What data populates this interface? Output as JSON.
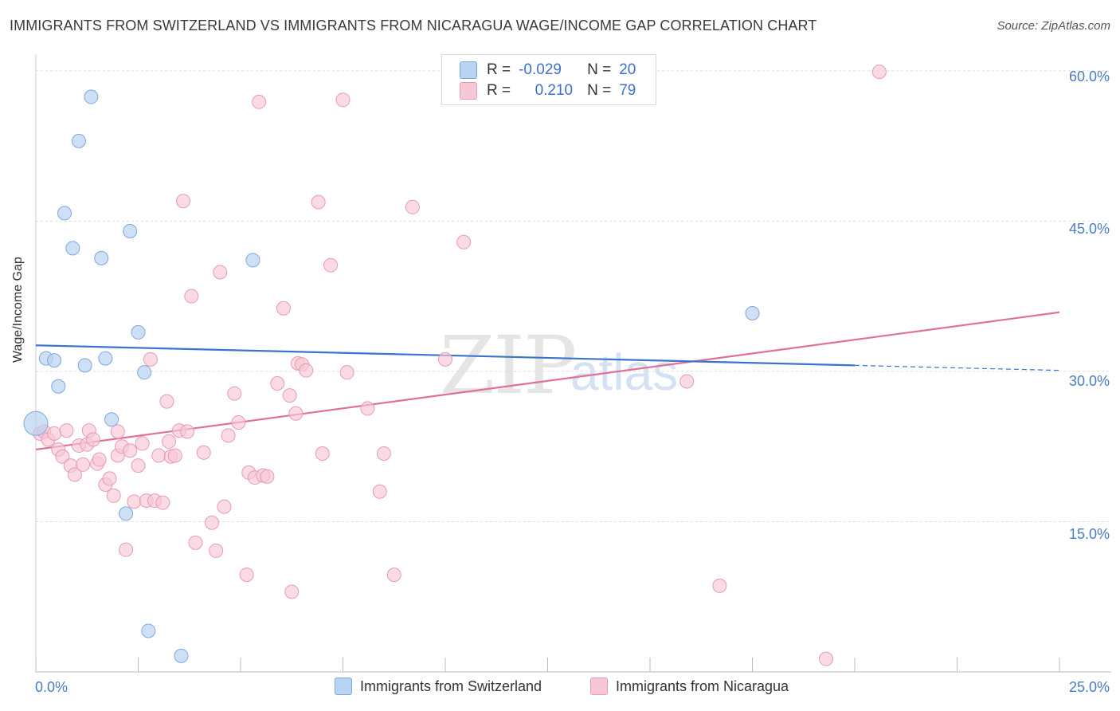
{
  "title": "IMMIGRANTS FROM SWITZERLAND VS IMMIGRANTS FROM NICARAGUA WAGE/INCOME GAP CORRELATION CHART",
  "source": "Source: ZipAtlas.com",
  "watermark": {
    "zip": "ZIP",
    "atlas": "atlas"
  },
  "stats": {
    "switzerland": {
      "r_label": "R =",
      "r": "-0.029",
      "n_label": "N =",
      "n": "20"
    },
    "nicaragua": {
      "r_label": "R =",
      "r": "0.210",
      "n_label": "N =",
      "n": "79"
    }
  },
  "colors": {
    "switzerland_fill": "#b9d3f2",
    "switzerland_stroke": "#7ea7dc",
    "switzerland_line": "#3a74cc",
    "nicaragua_fill": "#f7c7d5",
    "nicaragua_stroke": "#e79ab2",
    "nicaragua_line": "#e0709a",
    "grid": "#dddddd",
    "tick_text": "#4a7cc7"
  },
  "chart_data": {
    "type": "scatter",
    "title": "IMMIGRANTS FROM SWITZERLAND VS IMMIGRANTS FROM NICARAGUA WAGE/INCOME GAP CORRELATION CHART",
    "xlabel": "",
    "ylabel": "Wage/Income Gap",
    "xlim": [
      0,
      25
    ],
    "ylim": [
      0,
      61.5
    ],
    "x_tick_labels": [
      "0.0%",
      "25.0%"
    ],
    "y_ticks": [
      15,
      30,
      45,
      60
    ],
    "y_tick_labels": [
      "15.0%",
      "30.0%",
      "45.0%",
      "60.0%"
    ],
    "legend": [
      "Immigrants from Switzerland",
      "Immigrants from Nicaragua"
    ],
    "series": [
      {
        "name": "Immigrants from Switzerland",
        "points": [
          [
            0.0,
            24.8
          ],
          [
            0.25,
            31.3
          ],
          [
            0.45,
            31.1
          ],
          [
            0.55,
            28.5
          ],
          [
            0.7,
            45.8
          ],
          [
            0.9,
            42.3
          ],
          [
            1.05,
            53.0
          ],
          [
            1.2,
            30.6
          ],
          [
            1.35,
            57.4
          ],
          [
            1.6,
            41.3
          ],
          [
            1.7,
            31.3
          ],
          [
            1.85,
            25.2
          ],
          [
            2.2,
            15.8
          ],
          [
            2.3,
            44.0
          ],
          [
            2.5,
            33.9
          ],
          [
            2.65,
            29.9
          ],
          [
            2.75,
            4.1
          ],
          [
            3.55,
            1.6
          ],
          [
            5.3,
            41.1
          ],
          [
            17.5,
            35.8
          ]
        ],
        "trend": {
          "x0": 0.0,
          "y0": 32.6,
          "x1": 20.0,
          "y1": 30.6,
          "dashed_to_x": 25.0,
          "dashed_to_y": 30.1
        }
      },
      {
        "name": "Immigrants from Nicaragua",
        "points": [
          [
            0.1,
            23.8
          ],
          [
            0.2,
            24.0
          ],
          [
            0.3,
            23.2
          ],
          [
            0.45,
            23.8
          ],
          [
            0.55,
            22.2
          ],
          [
            0.65,
            21.5
          ],
          [
            0.75,
            24.1
          ],
          [
            0.85,
            20.6
          ],
          [
            0.95,
            19.7
          ],
          [
            1.05,
            22.6
          ],
          [
            1.15,
            20.7
          ],
          [
            1.25,
            22.7
          ],
          [
            1.3,
            24.1
          ],
          [
            1.4,
            23.2
          ],
          [
            1.5,
            20.8
          ],
          [
            1.55,
            21.2
          ],
          [
            1.7,
            18.7
          ],
          [
            1.8,
            19.3
          ],
          [
            1.9,
            17.6
          ],
          [
            2.0,
            21.6
          ],
          [
            2.1,
            22.5
          ],
          [
            2.2,
            12.2
          ],
          [
            2.3,
            22.1
          ],
          [
            2.4,
            17.0
          ],
          [
            2.5,
            20.6
          ],
          [
            2.6,
            22.8
          ],
          [
            2.7,
            17.1
          ],
          [
            2.8,
            31.2
          ],
          [
            2.9,
            17.1
          ],
          [
            3.0,
            21.6
          ],
          [
            3.1,
            16.9
          ],
          [
            3.2,
            27.0
          ],
          [
            3.25,
            23.0
          ],
          [
            3.3,
            21.5
          ],
          [
            3.4,
            21.6
          ],
          [
            3.5,
            24.1
          ],
          [
            3.6,
            47.0
          ],
          [
            3.7,
            24.0
          ],
          [
            3.8,
            37.5
          ],
          [
            3.9,
            12.9
          ],
          [
            4.1,
            21.9
          ],
          [
            4.3,
            14.9
          ],
          [
            4.4,
            12.1
          ],
          [
            4.5,
            39.9
          ],
          [
            4.6,
            16.5
          ],
          [
            4.7,
            23.6
          ],
          [
            4.85,
            27.8
          ],
          [
            4.95,
            24.9
          ],
          [
            5.15,
            9.7
          ],
          [
            5.2,
            19.9
          ],
          [
            5.35,
            19.4
          ],
          [
            5.45,
            56.9
          ],
          [
            5.55,
            19.6
          ],
          [
            5.65,
            19.5
          ],
          [
            5.9,
            28.8
          ],
          [
            6.05,
            36.3
          ],
          [
            6.2,
            27.6
          ],
          [
            6.25,
            8.0
          ],
          [
            6.35,
            25.8
          ],
          [
            6.4,
            30.8
          ],
          [
            6.5,
            30.7
          ],
          [
            6.6,
            30.1
          ],
          [
            6.9,
            46.9
          ],
          [
            7.0,
            21.8
          ],
          [
            7.2,
            40.6
          ],
          [
            7.5,
            57.1
          ],
          [
            7.6,
            29.9
          ],
          [
            8.1,
            26.3
          ],
          [
            8.4,
            18.0
          ],
          [
            8.5,
            21.8
          ],
          [
            8.75,
            9.7
          ],
          [
            9.2,
            46.4
          ],
          [
            10.0,
            31.2
          ],
          [
            10.45,
            42.9
          ],
          [
            15.9,
            29.0
          ],
          [
            16.7,
            8.6
          ],
          [
            19.3,
            1.3
          ],
          [
            20.6,
            59.9
          ],
          [
            2.0,
            24.0
          ]
        ],
        "trend": {
          "x0": 0.0,
          "y0": 22.2,
          "x1": 25.0,
          "y1": 35.9
        }
      }
    ]
  }
}
